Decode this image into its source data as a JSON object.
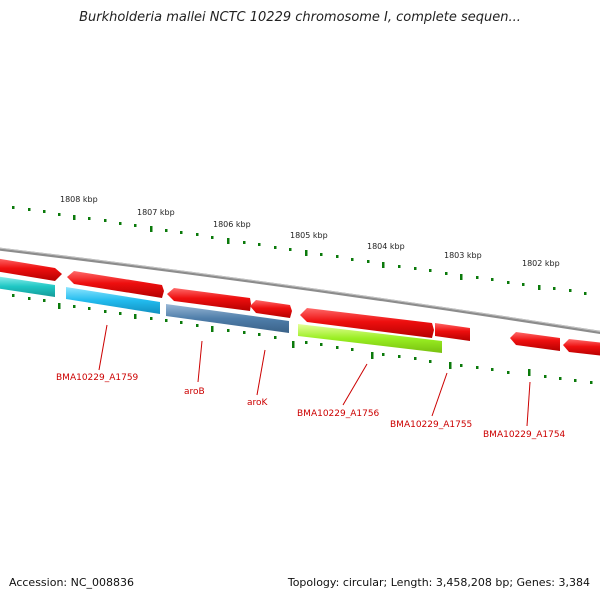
{
  "title": "Burkholderia mallei NCTC 10229 chromosome I, complete sequen...",
  "footer": {
    "accession": "Accession: NC_008836",
    "info": "Topology: circular; Length: 3,458,208 bp; Genes: 3,384"
  },
  "colors": {
    "backbone": "#888888",
    "tick": "#0b7a0b",
    "forward_gene": "#ee1111",
    "gene_label": "#cc0000"
  },
  "kbp_labels": [
    "1808 kbp",
    "1807 kbp",
    "1806 kbp",
    "1805 kbp",
    "1804 kbp",
    "1803 kbp",
    "1802 kbp"
  ],
  "genes": [
    {
      "label": "BMA10229_A1759",
      "color": "#22bbee"
    },
    {
      "label": "aroB",
      "color": "#4f7eaa"
    },
    {
      "label": "aroK",
      "color": "#4f7eaa"
    },
    {
      "label": "BMA10229_A1756",
      "color": "#99ee22"
    },
    {
      "label": "BMA10229_A1755",
      "color": "#ee1111"
    },
    {
      "label": "BMA10229_A1754",
      "color": "#ee1111"
    }
  ]
}
